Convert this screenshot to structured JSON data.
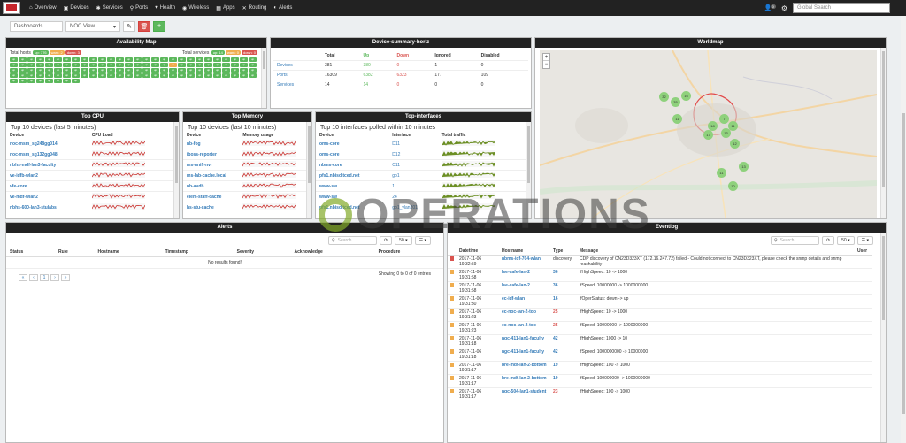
{
  "nav": {
    "items": [
      {
        "icon": "home-icon",
        "glyph": "⌂",
        "label": "Overview"
      },
      {
        "icon": "devices-icon",
        "glyph": "▣",
        "label": "Devices"
      },
      {
        "icon": "services-icon",
        "glyph": "✱",
        "label": "Services"
      },
      {
        "icon": "ports-icon",
        "glyph": "⚲",
        "label": "Ports"
      },
      {
        "icon": "health-icon",
        "glyph": "♥",
        "label": "Health"
      },
      {
        "icon": "wireless-icon",
        "glyph": "◉",
        "label": "Wireless"
      },
      {
        "icon": "apps-icon",
        "glyph": "▦",
        "label": "Apps"
      },
      {
        "icon": "routing-icon",
        "glyph": "✕",
        "label": "Routing"
      },
      {
        "icon": "alerts-icon",
        "glyph": "◐",
        "label": "Alerts"
      }
    ],
    "user_badge": "0",
    "search_placeholder": "Global Search"
  },
  "toolbar": {
    "dashboards_placeholder": "Dashboards",
    "view_value": "NOC View"
  },
  "availability": {
    "title": "Availability Map",
    "hosts_label": "Total hosts",
    "services_label": "Total services",
    "hosts_badges": [
      {
        "text": "up: 376",
        "cls": "g"
      },
      {
        "text": "warn: 2",
        "cls": "o"
      },
      {
        "text": "down: 3",
        "cls": "r"
      }
    ],
    "services_badges": [
      {
        "text": "up: 14",
        "cls": "g"
      },
      {
        "text": "warn: 0",
        "cls": "o"
      },
      {
        "text": "down: 0",
        "cls": "r"
      }
    ],
    "cell_label": "up"
  },
  "device_summary": {
    "title": "Device-summary-horiz",
    "headers": [
      "",
      "Total",
      "Up",
      "Down",
      "Ignored",
      "Disabled"
    ],
    "rows": [
      [
        "Devices",
        "381",
        "380",
        "0",
        "1",
        "0"
      ],
      [
        "Ports",
        "16309",
        "6382",
        "6323",
        "177",
        "109"
      ],
      [
        "Services",
        "14",
        "14",
        "0",
        "0",
        "0"
      ]
    ]
  },
  "worldmap": {
    "title": "Worldmap",
    "zoom_in": "+",
    "zoom_out": "−",
    "clusters": [
      {
        "n": "32"
      },
      {
        "n": "35"
      },
      {
        "n": "16"
      },
      {
        "n": "11"
      },
      {
        "n": "7"
      },
      {
        "n": "17"
      },
      {
        "n": "11"
      },
      {
        "n": "18"
      },
      {
        "n": "13"
      },
      {
        "n": "12"
      },
      {
        "n": "13"
      },
      {
        "n": "10"
      },
      {
        "n": "11"
      }
    ]
  },
  "top_cpu": {
    "title": "Top CPU",
    "subtitle": "Top 10 devices (last 5 minutes)",
    "headers": [
      "Device",
      "CPU Load"
    ],
    "rows": [
      "noc-msm_sg248gg014",
      "noc-msm_sg132gg048",
      "nbhs-mdf-lan3-faculty",
      "ve-idfb-wlan2",
      "vfe-core",
      "ve-mdf-wlan2",
      "nbhs-600-lan3-stulabs"
    ]
  },
  "top_memory": {
    "title": "Top Memory",
    "subtitle": "Top 10 devices (last 10 minutes)",
    "headers": [
      "Device",
      "Memory usage"
    ],
    "rows": [
      "nb-fog",
      "iboss-reporter",
      "ms-unifi-nvr",
      "ms-lab-cache.local",
      "nb-avdb",
      "elem-staff-cache",
      "hs-stu-cache"
    ]
  },
  "top_interfaces": {
    "title": "Top-interfaces",
    "subtitle": "Top 10 interfaces polled within 10 minutes",
    "headers": [
      "Device",
      "Interface",
      "Total traffic"
    ],
    "rows": [
      [
        "oms-core",
        "D11"
      ],
      [
        "oms-core",
        "D12"
      ],
      [
        "nbms-core",
        "C11"
      ],
      [
        "pfs1.nbisd.tced.net",
        "gb1"
      ],
      [
        "www-sw",
        "1"
      ],
      [
        "www-sw",
        "24"
      ],
      [
        "pfs1.nbisd.tced.net",
        "gb1_vlan201"
      ]
    ]
  },
  "alerts": {
    "title": "Alerts",
    "search_placeholder": "Search",
    "page_size": "50",
    "headers": [
      "Status",
      "Rule",
      "Hostname",
      "Timestamp",
      "Severity",
      "Acknowledge",
      "Procedure"
    ],
    "no_results": "No results found!",
    "pager": [
      "«",
      "‹",
      "1",
      "›",
      "»"
    ],
    "showing": "Showing 0 to 0 of 0 entries"
  },
  "eventlog": {
    "title": "Eventlog",
    "search_placeholder": "Search",
    "page_size": "50",
    "headers": [
      "Datetime",
      "Hostname",
      "Type",
      "Message",
      "User"
    ],
    "rows": [
      {
        "flag": "r",
        "dt": "2017-11-06 19:32:59",
        "host": "nbms-idf-704-wlan",
        "type": "discovery",
        "tc": "",
        "msg": "CDP discovery of CN23D323XT (172.16.247.72) failed - Could not connect to CN23D323XT, please check the snmp details and snmp reachability"
      },
      {
        "flag": "o",
        "dt": "2017-11-06 19:31:58",
        "host": "lse-cafe-lan-2",
        "type": "36",
        "tc": "",
        "msg": "ifHighSpeed: 10 -> 1000"
      },
      {
        "flag": "o",
        "dt": "2017-11-06 19:31:58",
        "host": "lse-cafe-lan-2",
        "type": "36",
        "tc": "",
        "msg": "ifSpeed: 10000000 -> 1000000000"
      },
      {
        "flag": "o",
        "dt": "2017-11-06 19:31:30",
        "host": "ec-idf-wlan",
        "type": "16",
        "tc": "",
        "msg": "ifOperStatus: down -> up"
      },
      {
        "flag": "o",
        "dt": "2017-11-06 19:31:23",
        "host": "ec-noc-lan-2-top",
        "type": "25",
        "tc": "red",
        "msg": "ifHighSpeed: 10 -> 1000"
      },
      {
        "flag": "o",
        "dt": "2017-11-06 19:31:23",
        "host": "ec-noc-lan-2-top",
        "type": "25",
        "tc": "red",
        "msg": "ifSpeed: 10000000 -> 1000000000"
      },
      {
        "flag": "o",
        "dt": "2017-11-06 19:31:18",
        "host": "ngc-411-lan1-faculty",
        "type": "42",
        "tc": "",
        "msg": "ifHighSpeed: 1000 -> 10"
      },
      {
        "flag": "o",
        "dt": "2017-11-06 19:31:18",
        "host": "ngc-411-lan1-faculty",
        "type": "42",
        "tc": "",
        "msg": "ifSpeed: 1000000000 -> 10000000"
      },
      {
        "flag": "o",
        "dt": "2017-11-06 19:31:17",
        "host": "bre-mdf-lan-2-bottom",
        "type": "19",
        "tc": "",
        "msg": "ifHighSpeed: 100 -> 1000"
      },
      {
        "flag": "o",
        "dt": "2017-11-06 19:31:17",
        "host": "bre-mdf-lan-2-bottom",
        "type": "19",
        "tc": "",
        "msg": "ifSpeed: 100000000 -> 1000000000"
      },
      {
        "flag": "o",
        "dt": "2017-11-06 19:31:17",
        "host": "ngc-504-lan1-student",
        "type": "23",
        "tc": "red",
        "msg": "ifHighSpeed: 100 -> 1000"
      }
    ]
  },
  "watermark": "OPERATIONS"
}
